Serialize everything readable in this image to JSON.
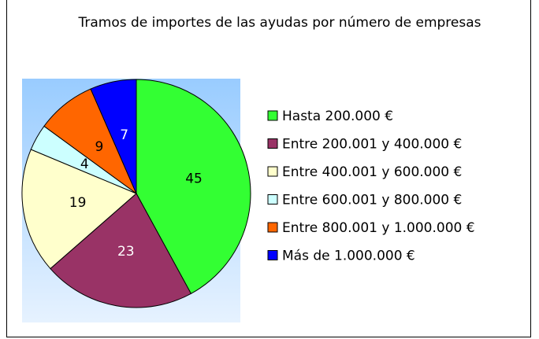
{
  "chart_data": {
    "type": "pie",
    "title": "Tramos de importes de las ayudas por número de empresas",
    "categories": [
      "Hasta 200.000 €",
      "Entre 200.001 y 400.000 €",
      "Entre 400.001 y 600.000 €",
      "Entre 600.001 y 800.000 €",
      "Entre 800.001 y 1.000.000 €",
      "Más de 1.000.000 €"
    ],
    "values": [
      45,
      23,
      19,
      4,
      9,
      7
    ],
    "colors": [
      "#33ff33",
      "#993366",
      "#ffffcc",
      "#ccffff",
      "#ff6600",
      "#0000ff"
    ],
    "legend": "right"
  }
}
